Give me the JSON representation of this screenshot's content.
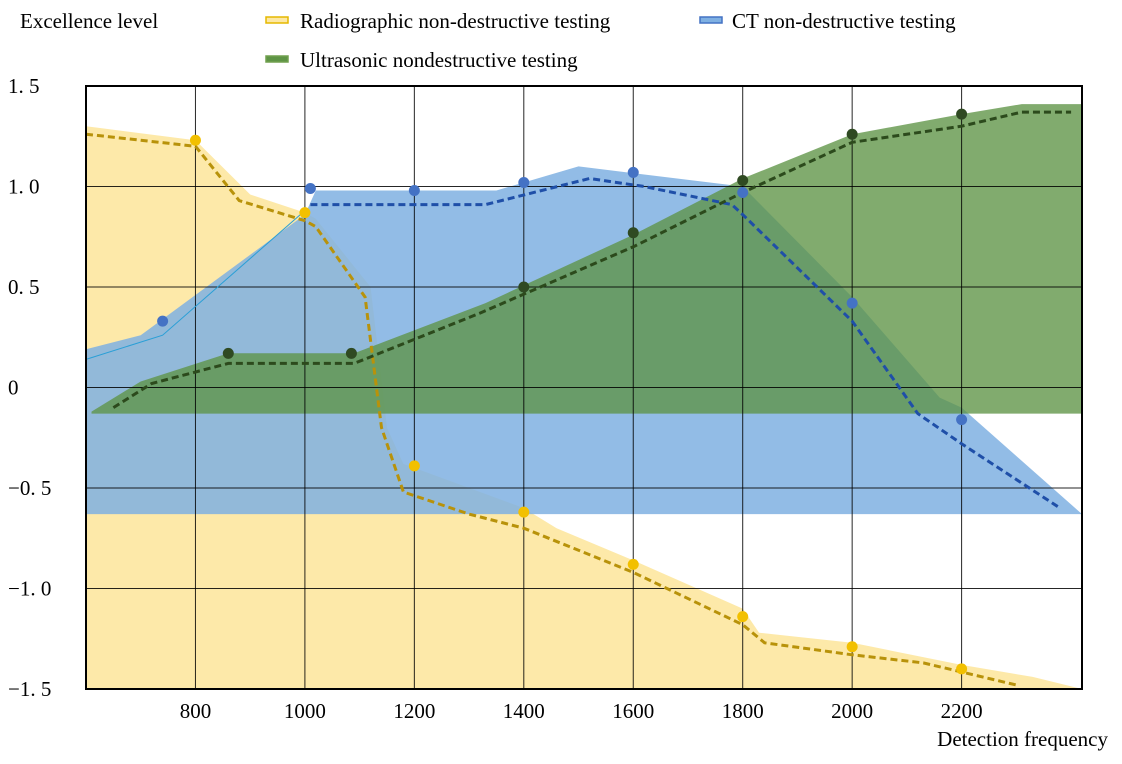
{
  "chart_data": {
    "type": "area",
    "ylabel": "Excellence level",
    "xlabel": "Detection frequency",
    "xlim": [
      600,
      2420
    ],
    "ylim": [
      -1.5,
      1.5
    ],
    "x_ticks": [
      800,
      1000,
      1200,
      1400,
      1600,
      1800,
      2000,
      2200
    ],
    "x_tick_labels": [
      "800",
      "1000",
      "1200",
      "1400",
      "1600",
      "1800",
      "2000",
      "2200"
    ],
    "y_ticks": [
      1.5,
      1.0,
      0.5,
      0,
      -0.5,
      -1.0,
      -1.5
    ],
    "y_tick_labels": [
      "1. 5",
      "1. 0",
      "0. 5",
      "0",
      "−0. 5",
      "−1. 0",
      "−1. 5"
    ],
    "grid": true,
    "legend_position": "top",
    "series": [
      {
        "name": "Radiographic non-destructive testing",
        "color": "#e5b800",
        "fill": "#fde8a4",
        "line_color": "#b8920a",
        "area_upper": [
          [
            600,
            1.3
          ],
          [
            800,
            1.23
          ],
          [
            900,
            0.96
          ],
          [
            1000,
            0.87
          ],
          [
            1020,
            0.84
          ],
          [
            1120,
            0.5
          ],
          [
            1150,
            -0.2
          ],
          [
            1180,
            -0.38
          ],
          [
            1200,
            -0.4
          ],
          [
            1400,
            -0.6
          ],
          [
            1460,
            -0.7
          ],
          [
            1600,
            -0.86
          ],
          [
            1800,
            -1.1
          ],
          [
            1830,
            -1.22
          ],
          [
            2000,
            -1.27
          ],
          [
            2200,
            -1.38
          ],
          [
            2330,
            -1.44
          ],
          [
            2420,
            -1.5
          ]
        ],
        "area_lower": [
          [
            2420,
            -1.5
          ],
          [
            600,
            -1.5
          ]
        ],
        "trend": [
          [
            600,
            1.26
          ],
          [
            800,
            1.2
          ],
          [
            880,
            0.93
          ],
          [
            1000,
            0.83
          ],
          [
            1020,
            0.8
          ],
          [
            1110,
            0.45
          ],
          [
            1140,
            -0.2
          ],
          [
            1180,
            -0.52
          ],
          [
            1300,
            -0.63
          ],
          [
            1400,
            -0.7
          ],
          [
            1600,
            -0.92
          ],
          [
            1800,
            -1.18
          ],
          [
            1840,
            -1.27
          ],
          [
            2000,
            -1.33
          ],
          [
            2130,
            -1.37
          ],
          [
            2300,
            -1.48
          ]
        ],
        "points": [
          [
            800,
            1.23
          ],
          [
            1000,
            0.87
          ],
          [
            1200,
            -0.39
          ],
          [
            1400,
            -0.62
          ],
          [
            1600,
            -0.88
          ],
          [
            1800,
            -1.14
          ],
          [
            2000,
            -1.29
          ],
          [
            2200,
            -1.4
          ]
        ]
      },
      {
        "name": "CT non-destructive testing",
        "color": "#4472c4",
        "fill": "#7fb0e2",
        "line_color": "#1f4fa8",
        "area_upper": [
          [
            600,
            0.19
          ],
          [
            700,
            0.26
          ],
          [
            1000,
            0.86
          ],
          [
            1020,
            0.98
          ],
          [
            1350,
            0.98
          ],
          [
            1500,
            1.1
          ],
          [
            1800,
            1.0
          ],
          [
            2000,
            0.45
          ],
          [
            2160,
            -0.05
          ],
          [
            2200,
            -0.1
          ],
          [
            2420,
            -0.63
          ]
        ],
        "area_lower": [
          [
            2420,
            -0.63
          ],
          [
            600,
            -0.63
          ]
        ],
        "trend": [
          [
            1010,
            0.91
          ],
          [
            1330,
            0.91
          ],
          [
            1520,
            1.04
          ],
          [
            1620,
            1.0
          ],
          [
            1780,
            0.91
          ],
          [
            1800,
            0.86
          ],
          [
            2000,
            0.33
          ],
          [
            2120,
            -0.13
          ],
          [
            2200,
            -0.28
          ],
          [
            2380,
            -0.6
          ]
        ],
        "thin_line": [
          [
            600,
            0.14
          ],
          [
            740,
            0.26
          ],
          [
            1000,
            0.88
          ]
        ],
        "points": [
          [
            740,
            0.33
          ],
          [
            1010,
            0.99
          ],
          [
            1200,
            0.98
          ],
          [
            1400,
            1.02
          ],
          [
            1600,
            1.07
          ],
          [
            1800,
            0.97
          ],
          [
            2000,
            0.42
          ],
          [
            2200,
            -0.16
          ]
        ]
      },
      {
        "name": "Ultrasonic nondestructive testing",
        "color": "#70a04e",
        "fill": "#5e9445",
        "line_color": "#2c4a1c",
        "area_upper": [
          [
            610,
            -0.12
          ],
          [
            700,
            0.03
          ],
          [
            860,
            0.17
          ],
          [
            1090,
            0.17
          ],
          [
            1330,
            0.42
          ],
          [
            1600,
            0.76
          ],
          [
            1800,
            1.04
          ],
          [
            2000,
            1.26
          ],
          [
            2200,
            1.36
          ],
          [
            2310,
            1.41
          ],
          [
            2420,
            1.41
          ]
        ],
        "area_lower": [
          [
            2420,
            -0.13
          ],
          [
            610,
            -0.13
          ]
        ],
        "trend": [
          [
            650,
            -0.1
          ],
          [
            720,
            0.02
          ],
          [
            860,
            0.12
          ],
          [
            1090,
            0.12
          ],
          [
            1320,
            0.37
          ],
          [
            1600,
            0.7
          ],
          [
            1800,
            0.97
          ],
          [
            2000,
            1.22
          ],
          [
            2200,
            1.3
          ],
          [
            2310,
            1.37
          ],
          [
            2400,
            1.37
          ]
        ],
        "points": [
          [
            860,
            0.17
          ],
          [
            1085,
            0.17
          ],
          [
            1400,
            0.5
          ],
          [
            1600,
            0.77
          ],
          [
            1800,
            1.03
          ],
          [
            2000,
            1.26
          ],
          [
            2200,
            1.36
          ]
        ]
      }
    ]
  }
}
